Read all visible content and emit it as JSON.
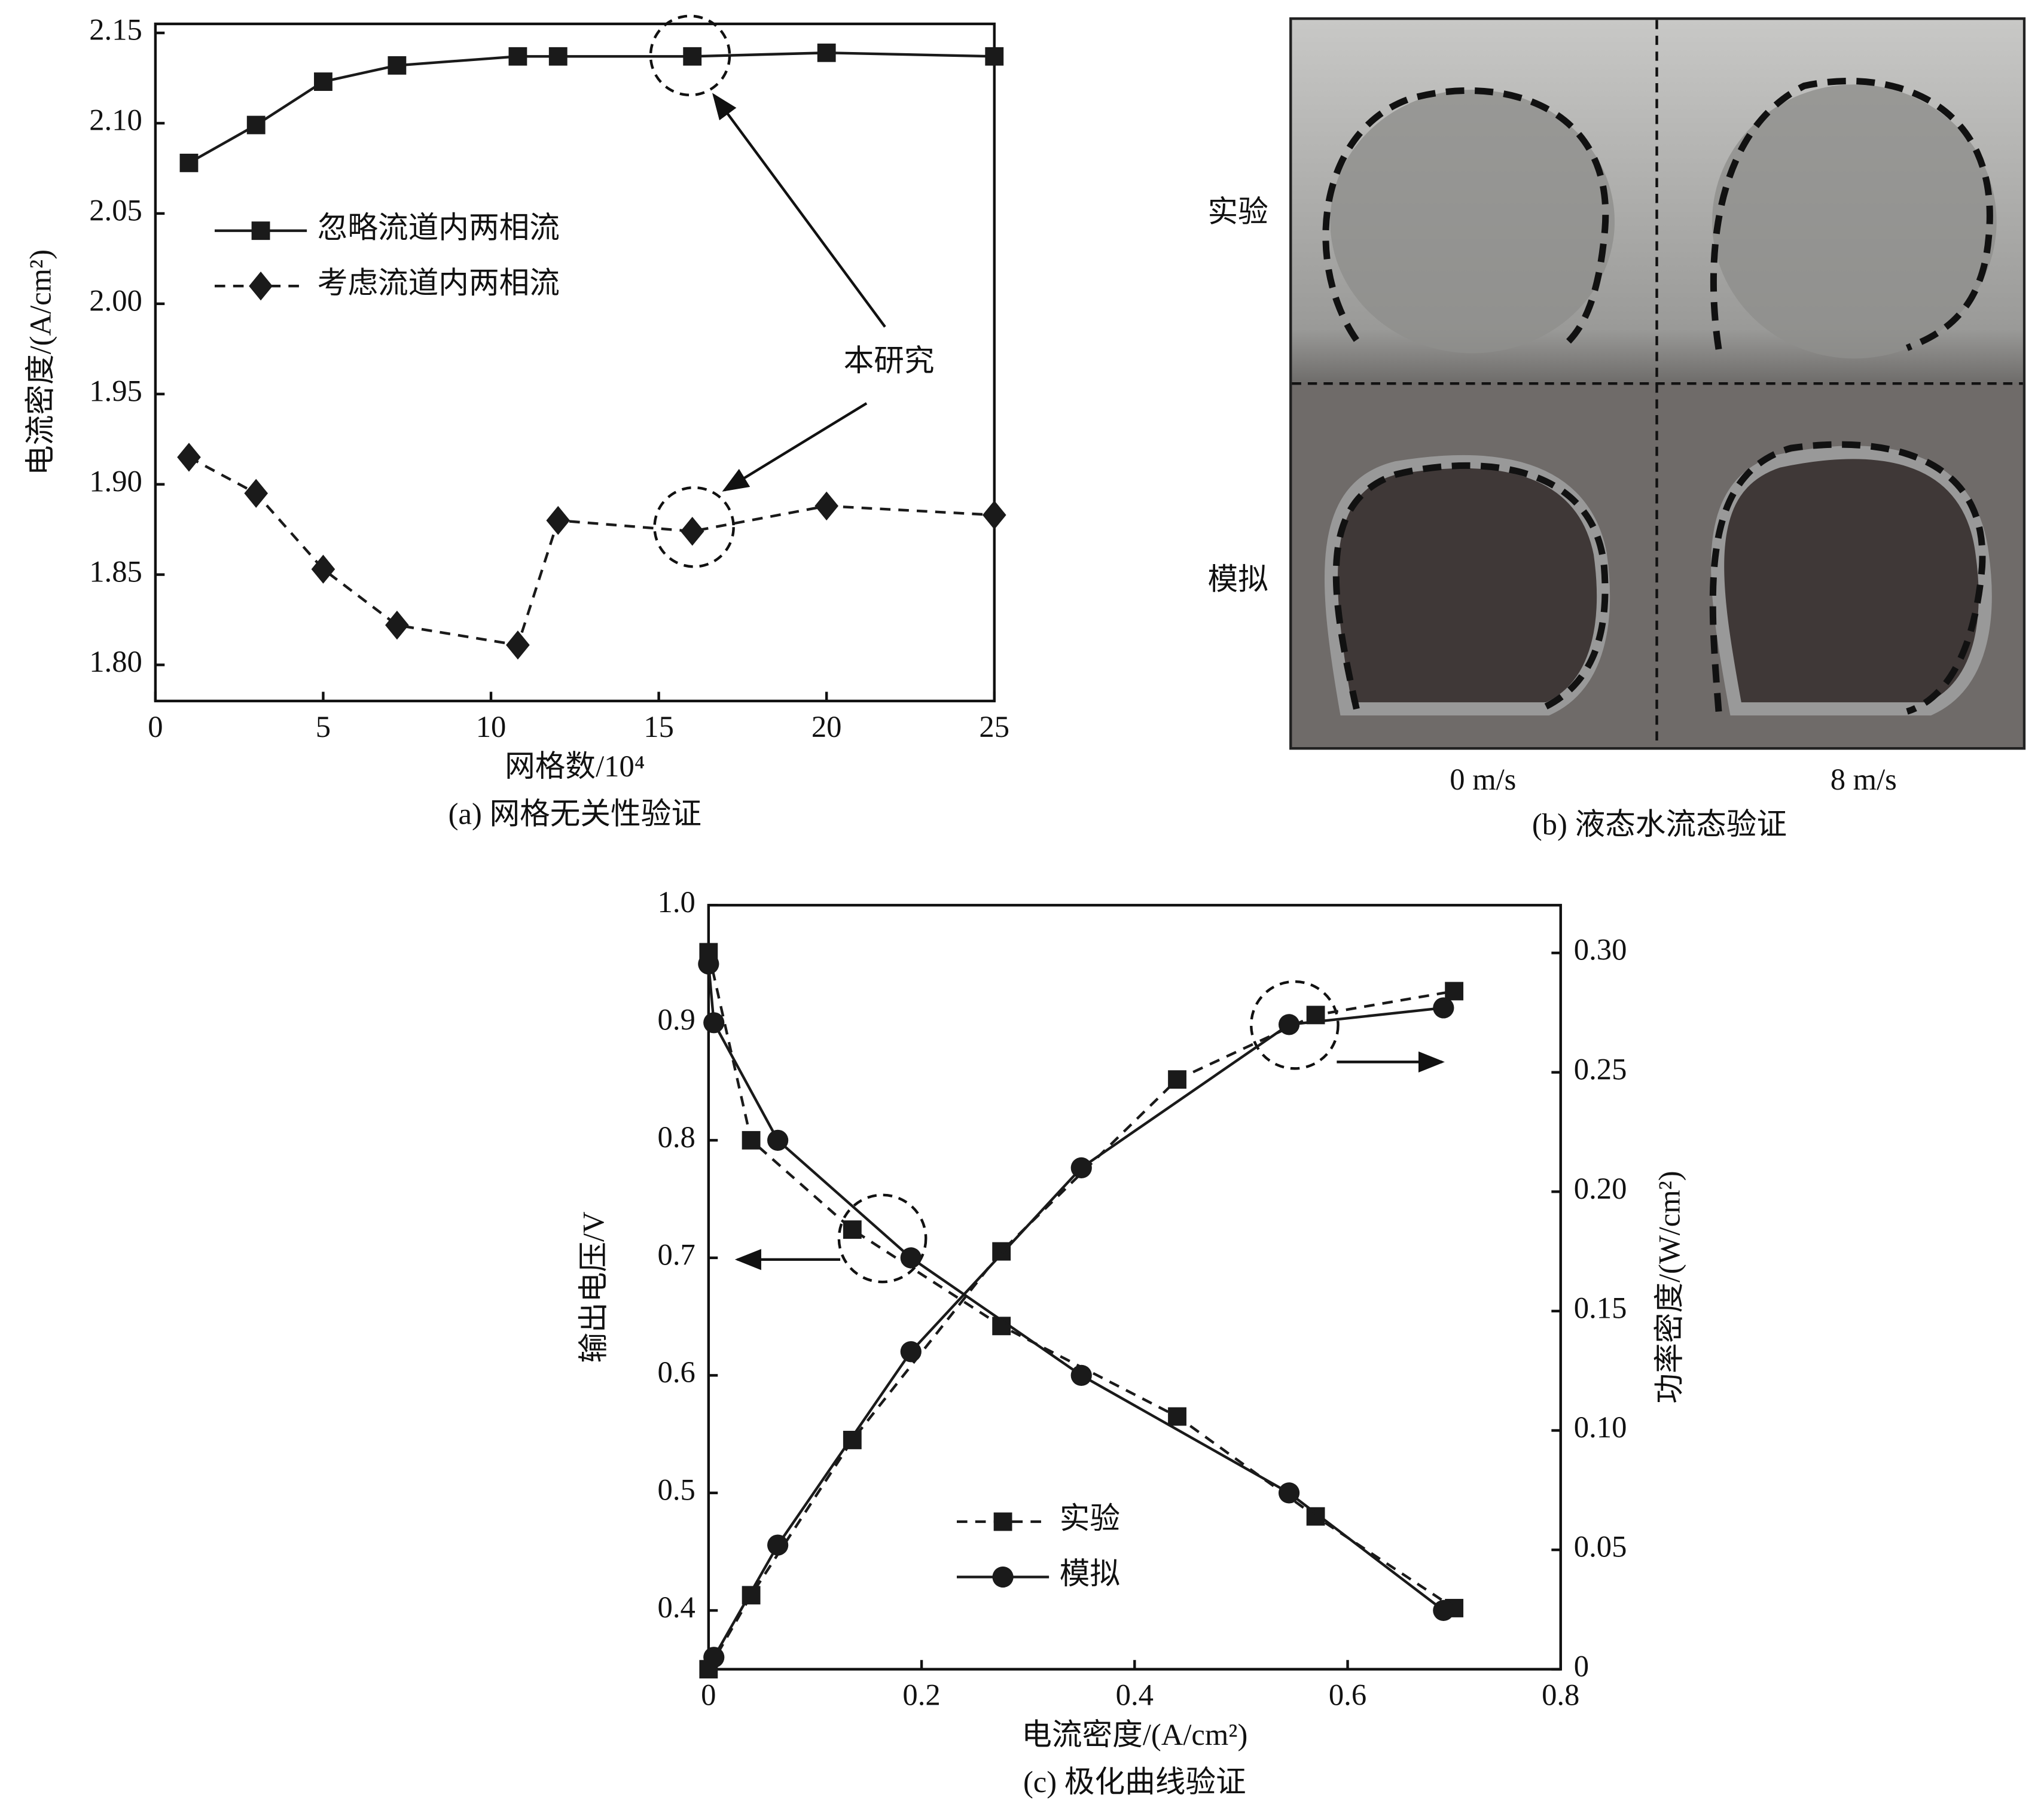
{
  "chart_data": [
    {
      "type": "line",
      "xlabel": "网格数/10⁴",
      "ylabel": "电流密度/(A/cm²)",
      "caption": "(a) 网格无关性验证",
      "annotation": "本研究",
      "x": [
        1,
        3,
        5,
        7.2,
        10.8,
        12,
        16,
        20,
        25
      ],
      "xlim": [
        0,
        25
      ],
      "xticks": [
        0,
        5,
        10,
        15,
        20,
        25
      ],
      "ylim": [
        1.78,
        2.155
      ],
      "yticks": [
        {
          "value": 1.8,
          "label": "1.80"
        },
        1.85,
        {
          "value": 1.9,
          "label": "1.90"
        },
        1.95,
        {
          "value": 2.0,
          "label": "2.00"
        },
        2.05,
        {
          "value": 2.1,
          "label": "2.10"
        },
        2.15
      ],
      "legend": "center left",
      "series": [
        {
          "name": "忽略流道内两相流",
          "color": "#1a1a1a",
          "dash": false,
          "marker": "square",
          "values": [
            2.078,
            2.099,
            2.123,
            2.132,
            2.137,
            2.137,
            2.137,
            2.139,
            2.137
          ]
        },
        {
          "name": "考虑流道内两相流",
          "color": "#1a1a1a",
          "dash": true,
          "marker": "diamond",
          "values": [
            1.915,
            1.895,
            1.853,
            1.822,
            1.811,
            1.88,
            1.874,
            1.888,
            1.883
          ]
        }
      ]
    },
    {
      "type": "line",
      "xlabel": "电流密度/(A/cm²)",
      "ylabel": "输出电压/V",
      "y2label": "功率密度/(W/cm²)",
      "caption": "(c) 极化曲线验证",
      "xlim": [
        0,
        0.8
      ],
      "xticks": [
        0,
        0.2,
        0.4,
        0.6,
        0.8
      ],
      "ylim": [
        0.35,
        1.0
      ],
      "yticks": [
        0.4,
        0.5,
        0.6,
        0.7,
        0.8,
        0.9,
        {
          "value": 1,
          "label": "1.0"
        }
      ],
      "y2lim": [
        0,
        0.32
      ],
      "y2ticks": [
        0,
        0.05,
        {
          "value": 0.1,
          "label": "0.10"
        },
        0.15,
        {
          "value": 0.2,
          "label": "0.20"
        },
        0.25,
        {
          "value": 0.3,
          "label": "0.30"
        }
      ],
      "legend": "lower center",
      "series": [
        {
          "name": "实验",
          "color": "#1a1a1a",
          "dash": true,
          "marker": "square",
          "x": [
            0,
            0.04,
            0.135,
            0.275,
            0.44,
            0.57,
            0.7
          ],
          "values": [
            0.96,
            0.8,
            0.724,
            0.642,
            0.565,
            0.48,
            0.402
          ]
        },
        {
          "name": "模拟",
          "color": "#1a1a1a",
          "dash": false,
          "marker": "circle",
          "x": [
            0,
            0.005,
            0.065,
            0.19,
            0.35,
            0.545,
            0.69
          ],
          "values": [
            0.95,
            0.9,
            0.8,
            0.7,
            0.6,
            0.5,
            0.4
          ]
        },
        {
          "color": "#1a1a1a",
          "dash": true,
          "marker": "square",
          "axis": "y2",
          "x": [
            0,
            0.04,
            0.135,
            0.275,
            0.44,
            0.57,
            0.7
          ],
          "values": [
            0,
            0.031,
            0.096,
            0.175,
            0.247,
            0.274,
            0.284
          ]
        },
        {
          "color": "#1a1a1a",
          "dash": false,
          "marker": "circle",
          "axis": "y2",
          "x": [
            0.005,
            0.065,
            0.19,
            0.35,
            0.545,
            0.69
          ],
          "values": [
            0.005,
            0.052,
            0.133,
            0.21,
            0.27,
            0.277
          ]
        }
      ]
    }
  ],
  "panel_b": {
    "rows": [
      "实验",
      "模拟"
    ],
    "columns": [
      "0 m/s",
      "8 m/s"
    ],
    "caption": "(b) 液态水流态验证"
  }
}
